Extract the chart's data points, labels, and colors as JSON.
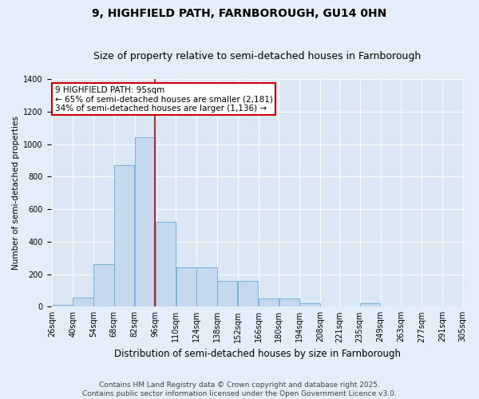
{
  "title": "9, HIGHFIELD PATH, FARNBOROUGH, GU14 0HN",
  "subtitle": "Size of property relative to semi-detached houses in Farnborough",
  "xlabel": "Distribution of semi-detached houses by size in Farnborough",
  "ylabel": "Number of semi-detached properties",
  "footer_line1": "Contains HM Land Registry data © Crown copyright and database right 2025.",
  "footer_line2": "Contains public sector information licensed under the Open Government Licence v3.0.",
  "annotation_title": "9 HIGHFIELD PATH: 95sqm",
  "annotation_line2": "← 65% of semi-detached houses are smaller (2,181)",
  "annotation_line3": "34% of semi-detached houses are larger (1,136) →",
  "property_size": 95,
  "bin_edges": [
    26,
    40,
    54,
    68,
    82,
    96,
    110,
    124,
    138,
    152,
    166,
    180,
    194,
    208,
    221,
    235,
    249,
    263,
    277,
    291,
    305
  ],
  "bin_labels": [
    "26sqm",
    "40sqm",
    "54sqm",
    "68sqm",
    "82sqm",
    "96sqm",
    "110sqm",
    "124sqm",
    "138sqm",
    "152sqm",
    "166sqm",
    "180sqm",
    "194sqm",
    "208sqm",
    "221sqm",
    "235sqm",
    "249sqm",
    "263sqm",
    "277sqm",
    "291sqm",
    "305sqm"
  ],
  "counts": [
    10,
    55,
    260,
    870,
    1040,
    520,
    240,
    240,
    160,
    160,
    50,
    50,
    20,
    0,
    0,
    20,
    0,
    0,
    0,
    0
  ],
  "bar_color": "#c5d8ed",
  "bar_edge_color": "#6aaad4",
  "vline_color": "#bb0000",
  "ylim": [
    0,
    1400
  ],
  "yticks": [
    0,
    200,
    400,
    600,
    800,
    1000,
    1200,
    1400
  ],
  "fig_bg_color": "#e4eef8",
  "plot_bg_color": "#dbe8f4",
  "grid_color": "#ffffff",
  "title_fontsize": 10,
  "subtitle_fontsize": 9,
  "annotation_fontsize": 7.5,
  "ylabel_fontsize": 7.5,
  "xlabel_fontsize": 8.5,
  "footer_fontsize": 6.5,
  "tick_fontsize": 7
}
